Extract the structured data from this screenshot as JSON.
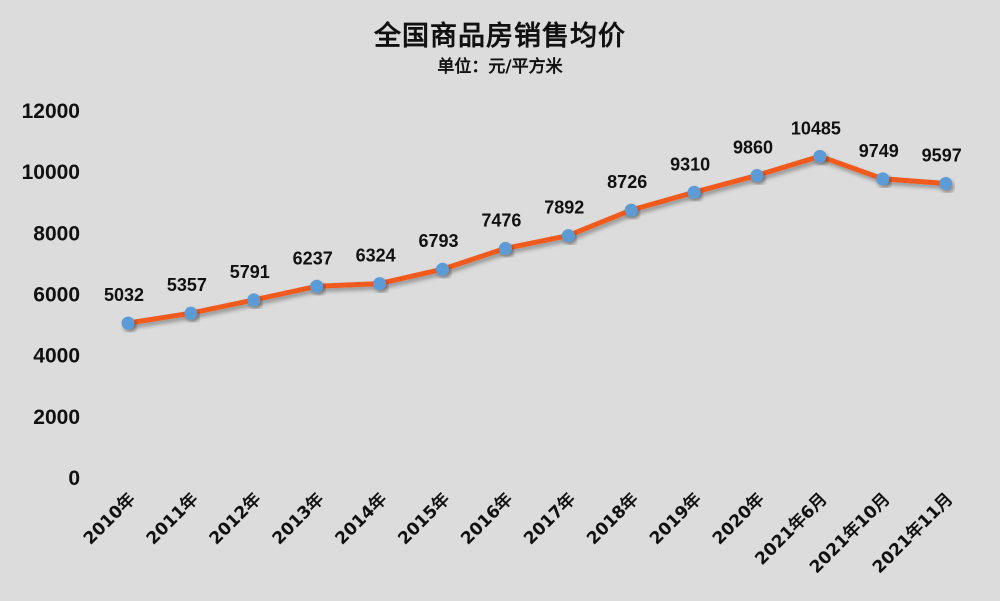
{
  "header": {
    "title": "全国商品房销售均价",
    "subtitle": "单位：元/平方米"
  },
  "colors": {
    "background": "#dcdcdc",
    "line": "#f05a1e",
    "marker": "#5b9bd5",
    "text": "#111111"
  },
  "chart_data": {
    "type": "line",
    "title": "全国商品房销售均价",
    "subtitle": "单位：元/平方米",
    "xlabel": "",
    "ylabel": "",
    "categories": [
      "2010年",
      "2011年",
      "2012年",
      "2013年",
      "2014年",
      "2015年",
      "2016年",
      "2017年",
      "2018年",
      "2019年",
      "2020年",
      "2021年6月",
      "2021年10月",
      "2021年11月"
    ],
    "series": [
      {
        "name": "全国商品房销售均价",
        "values": [
          5032,
          5357,
          5791,
          6237,
          6324,
          6793,
          7476,
          7892,
          8726,
          9310,
          9860,
          10485,
          9749,
          9597
        ]
      }
    ],
    "yticks": [
      "0",
      "2000",
      "4000",
      "6000",
      "8000",
      "10000",
      "12000"
    ],
    "ylim": [
      0,
      12000
    ],
    "grid": false,
    "legend": "none",
    "data_labels": true
  }
}
